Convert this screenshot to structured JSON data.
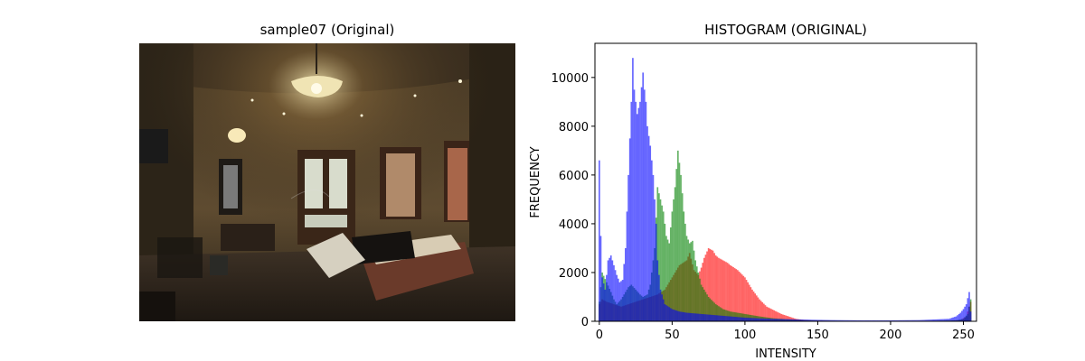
{
  "left_panel": {
    "title": "sample07 (Original)",
    "image_description_icon": "hotel-room-photo"
  },
  "chart_data": {
    "type": "histogram",
    "title": "HISTOGRAM (ORIGINAL)",
    "xlabel": "INTENSITY",
    "ylabel": "FREQUENCY",
    "xlim": [
      -3,
      259
    ],
    "ylim": [
      0,
      11400
    ],
    "xticks": [
      0,
      50,
      100,
      150,
      200,
      250
    ],
    "yticks": [
      0,
      2000,
      4000,
      6000,
      8000,
      10000
    ],
    "colors": {
      "red": "#ff0000",
      "green": "#008000",
      "blue": "#0000ff"
    },
    "opacity": 0.6,
    "series": [
      {
        "name": "red",
        "color": "#ff0000",
        "points": [
          [
            0,
            700
          ],
          [
            2,
            900
          ],
          [
            5,
            800
          ],
          [
            10,
            700
          ],
          [
            15,
            600
          ],
          [
            20,
            700
          ],
          [
            25,
            800
          ],
          [
            30,
            900
          ],
          [
            35,
            1000
          ],
          [
            40,
            1100
          ],
          [
            45,
            1300
          ],
          [
            50,
            1800
          ],
          [
            55,
            2300
          ],
          [
            60,
            2500
          ],
          [
            62,
            2800
          ],
          [
            65,
            2100
          ],
          [
            68,
            1900
          ],
          [
            70,
            2200
          ],
          [
            72,
            2600
          ],
          [
            75,
            3000
          ],
          [
            78,
            2900
          ],
          [
            80,
            2700
          ],
          [
            82,
            2600
          ],
          [
            85,
            2500
          ],
          [
            88,
            2400
          ],
          [
            90,
            2300
          ],
          [
            95,
            2100
          ],
          [
            100,
            1800
          ],
          [
            105,
            1300
          ],
          [
            110,
            900
          ],
          [
            115,
            600
          ],
          [
            120,
            450
          ],
          [
            125,
            300
          ],
          [
            130,
            200
          ],
          [
            135,
            100
          ],
          [
            140,
            60
          ],
          [
            145,
            40
          ],
          [
            150,
            30
          ],
          [
            160,
            20
          ],
          [
            180,
            15
          ],
          [
            200,
            15
          ],
          [
            220,
            15
          ],
          [
            240,
            20
          ],
          [
            248,
            50
          ],
          [
            252,
            200
          ],
          [
            255,
            800
          ]
        ]
      },
      {
        "name": "green",
        "color": "#008000",
        "points": [
          [
            0,
            800
          ],
          [
            2,
            2000
          ],
          [
            5,
            1600
          ],
          [
            8,
            1200
          ],
          [
            10,
            900
          ],
          [
            12,
            700
          ],
          [
            15,
            900
          ],
          [
            18,
            1200
          ],
          [
            20,
            1400
          ],
          [
            22,
            1500
          ],
          [
            25,
            1300
          ],
          [
            28,
            1100
          ],
          [
            30,
            1000
          ],
          [
            33,
            1100
          ],
          [
            35,
            1500
          ],
          [
            38,
            3000
          ],
          [
            40,
            5500
          ],
          [
            42,
            5000
          ],
          [
            44,
            4500
          ],
          [
            46,
            3500
          ],
          [
            48,
            3200
          ],
          [
            50,
            4500
          ],
          [
            52,
            5500
          ],
          [
            54,
            7000
          ],
          [
            56,
            6000
          ],
          [
            58,
            4500
          ],
          [
            60,
            3500
          ],
          [
            62,
            3200
          ],
          [
            64,
            3300
          ],
          [
            66,
            2500
          ],
          [
            68,
            2000
          ],
          [
            70,
            1500
          ],
          [
            75,
            1000
          ],
          [
            80,
            700
          ],
          [
            85,
            500
          ],
          [
            90,
            400
          ],
          [
            95,
            350
          ],
          [
            100,
            300
          ],
          [
            110,
            200
          ],
          [
            120,
            120
          ],
          [
            130,
            80
          ],
          [
            140,
            50
          ],
          [
            150,
            30
          ],
          [
            170,
            20
          ],
          [
            200,
            15
          ],
          [
            230,
            20
          ],
          [
            245,
            40
          ],
          [
            250,
            100
          ],
          [
            253,
            300
          ],
          [
            255,
            900
          ]
        ]
      },
      {
        "name": "blue",
        "color": "#0000ff",
        "points": [
          [
            0,
            6600
          ],
          [
            1,
            3500
          ],
          [
            2,
            1800
          ],
          [
            4,
            1300
          ],
          [
            6,
            2500
          ],
          [
            8,
            2700
          ],
          [
            10,
            2300
          ],
          [
            12,
            1900
          ],
          [
            14,
            1600
          ],
          [
            16,
            1700
          ],
          [
            18,
            3000
          ],
          [
            20,
            6000
          ],
          [
            22,
            9000
          ],
          [
            23,
            10800
          ],
          [
            24,
            9500
          ],
          [
            26,
            8500
          ],
          [
            28,
            9000
          ],
          [
            30,
            10200
          ],
          [
            31,
            9500
          ],
          [
            32,
            9000
          ],
          [
            33,
            8000
          ],
          [
            35,
            7200
          ],
          [
            37,
            6000
          ],
          [
            39,
            4000
          ],
          [
            40,
            2500
          ],
          [
            42,
            1300
          ],
          [
            45,
            700
          ],
          [
            50,
            500
          ],
          [
            55,
            400
          ],
          [
            60,
            350
          ],
          [
            70,
            300
          ],
          [
            80,
            250
          ],
          [
            90,
            200
          ],
          [
            100,
            150
          ],
          [
            110,
            120
          ],
          [
            120,
            100
          ],
          [
            140,
            70
          ],
          [
            160,
            50
          ],
          [
            180,
            40
          ],
          [
            200,
            40
          ],
          [
            220,
            50
          ],
          [
            240,
            100
          ],
          [
            245,
            200
          ],
          [
            248,
            350
          ],
          [
            250,
            500
          ],
          [
            252,
            700
          ],
          [
            254,
            1200
          ],
          [
            255,
            400
          ]
        ]
      }
    ]
  }
}
